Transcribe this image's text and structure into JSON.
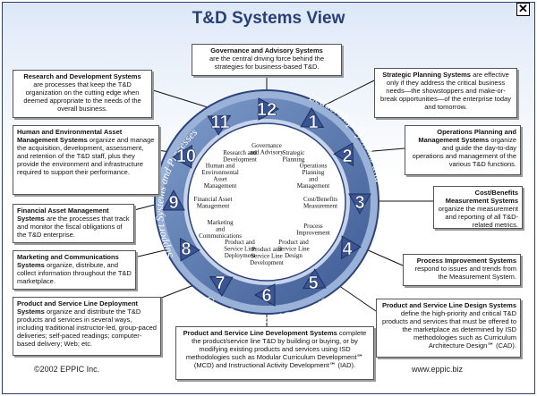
{
  "title": "T&D Systems View",
  "close_icon": "close-icon",
  "ring": {
    "leadership": "Leadership Systems and Processes",
    "core": "Core Systems and Processes",
    "support": "Support Systems and Processes"
  },
  "numbers": [
    "1",
    "2",
    "3",
    "4",
    "5",
    "6",
    "7",
    "8",
    "9",
    "10",
    "11",
    "12"
  ],
  "inner_labels": [
    {
      "id": "12",
      "lines": [
        "Governance",
        "and Advisory"
      ]
    },
    {
      "id": "1",
      "lines": [
        "Strategic",
        "Planning"
      ]
    },
    {
      "id": "2",
      "lines": [
        "Operations",
        "Planning",
        "and",
        "Management"
      ]
    },
    {
      "id": "3",
      "lines": [
        "Cost/Benefits",
        "Measurement"
      ]
    },
    {
      "id": "4",
      "lines": [
        "Process",
        "Improvement"
      ]
    },
    {
      "id": "5",
      "lines": [
        "Product and",
        "Service Line",
        "Design"
      ]
    },
    {
      "id": "6",
      "lines": [
        "Product and",
        "Service Line",
        "Development"
      ]
    },
    {
      "id": "7",
      "lines": [
        "Product and",
        "Service Line",
        "Deployment"
      ]
    },
    {
      "id": "8",
      "lines": [
        "Marketing",
        "and",
        "Communications"
      ]
    },
    {
      "id": "9",
      "lines": [
        "Financial Asset",
        "Management"
      ]
    },
    {
      "id": "10",
      "lines": [
        "Human and",
        "Environmental",
        "Asset",
        "Management"
      ]
    },
    {
      "id": "11",
      "lines": [
        "Research and",
        "Development"
      ]
    }
  ],
  "boxes": {
    "governance": {
      "title": "Governance and Advisory Systems",
      "text": "are the central driving force behind the strategies for business-based T&D."
    },
    "strategic": {
      "title": "Strategic Planning Systems",
      "text": "are effective only if they address the critical business needs—the showstoppers and make-or-break opportunities—of the enterprise today and tomorrow."
    },
    "operations": {
      "title": "Operations Planning and Management Systems",
      "text": "organize and guide the day-to-day operations and management of the various T&D functions."
    },
    "cost": {
      "title": "Cost/Benefits Measurement Systems",
      "text": "organize the measurement and reporting of all T&D-related metrics."
    },
    "process": {
      "title": "Process Improvement Systems",
      "text": "respond to issues and trends from the Measurement System."
    },
    "design": {
      "title": "Product and Service Line Design Systems",
      "text": "define the high-priority and critical T&D products and services that must be offered to the marketplace as determined by ISD methodologies such as Curriculum Architecture Design℠ (CAD)."
    },
    "development": {
      "title": "Product and Service Line Development Systems",
      "text": "complete the product/service line T&D by building or buying, or by modifying existing products and services using ISD methodologies such as Modular Curriculum Development℠ (MCD) and Instructional Activity Development℠ (IAD)."
    },
    "deployment": {
      "title": "Product and Service Line Deployment Systems",
      "text": "organize and distribute the T&D products and services in several ways, including traditional instructor-led, group-paced deliveries; self-paced readings; computer-based delivery; Web; etc."
    },
    "marketing": {
      "title": "Marketing and Communications Systems",
      "text": "organize, distribute, and collect information throughout the T&D marketplace."
    },
    "financial": {
      "title": "Financial Asset Management Systems",
      "text": "are the processes that track and monitor the fiscal obligations of the T&D enterprise."
    },
    "human": {
      "title": "Human and Environmental Asset Management Systems",
      "text": "organize and manage the acquisition, development, assessment, and retention of the T&D staff, plus they provide the environment and infrastructure required to support their performance."
    },
    "research": {
      "title": "Research and Development Systems",
      "text": "are processes that keep the T&D organization on the cutting edge when deemed appropriate to the needs of the overall business."
    }
  },
  "footer": {
    "copyright": "©2002 EPPIC Inc.",
    "url": "www.eppic.biz"
  },
  "colors": {
    "ring": "#4f6fa6",
    "ring_dark": "#2c4379",
    "arrow": "#3a5595",
    "title": "#2a3f78"
  }
}
